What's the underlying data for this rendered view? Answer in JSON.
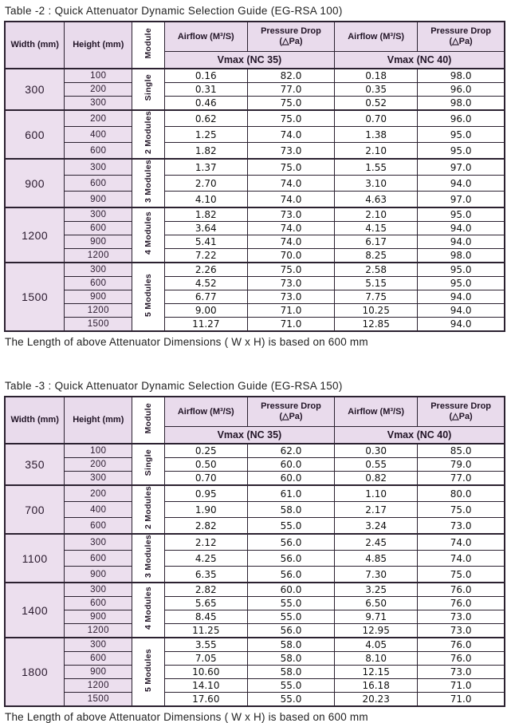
{
  "colors": {
    "header_bg": "#e9dbec",
    "label_bg": "#ecdfee",
    "border": "#2b2130",
    "text": "#1a1a1a"
  },
  "tables": [
    {
      "title": "Table -2 : Quick Attenuator Dynamic Selection Guide (EG-RSA 100)",
      "headers": {
        "width": "Width (mm)",
        "height": "Height (mm)",
        "module": "Module",
        "airflow": "Airflow (M³/S)",
        "pressure_drop": "Pressure Drop\n(△Pa)",
        "vmax_nc35": "Vmax (NC 35)",
        "vmax_nc40": "Vmax (NC 40)"
      },
      "groups": [
        {
          "width": "300",
          "module": "Single",
          "rows": [
            {
              "height": "100",
              "airflow_nc35": "0.16",
              "pressure_nc35": "82.0",
              "airflow_nc40": "0.18",
              "pressure_nc40": "98.0"
            },
            {
              "height": "200",
              "airflow_nc35": "0.31",
              "pressure_nc35": "77.0",
              "airflow_nc40": "0.35",
              "pressure_nc40": "96.0"
            },
            {
              "height": "300",
              "airflow_nc35": "0.46",
              "pressure_nc35": "75.0",
              "airflow_nc40": "0.52",
              "pressure_nc40": "98.0"
            }
          ]
        },
        {
          "width": "600",
          "module": "2 Modules",
          "rows": [
            {
              "height": "200",
              "airflow_nc35": "0.62",
              "pressure_nc35": "75.0",
              "airflow_nc40": "0.70",
              "pressure_nc40": "96.0"
            },
            {
              "height": "400",
              "airflow_nc35": "1.25",
              "pressure_nc35": "74.0",
              "airflow_nc40": "1.38",
              "pressure_nc40": "95.0"
            },
            {
              "height": "600",
              "airflow_nc35": "1.82",
              "pressure_nc35": "73.0",
              "airflow_nc40": "2.10",
              "pressure_nc40": "95.0"
            }
          ]
        },
        {
          "width": "900",
          "module": "3 Modules",
          "rows": [
            {
              "height": "300",
              "airflow_nc35": "1.37",
              "pressure_nc35": "75.0",
              "airflow_nc40": "1.55",
              "pressure_nc40": "97.0"
            },
            {
              "height": "600",
              "airflow_nc35": "2.70",
              "pressure_nc35": "74.0",
              "airflow_nc40": "3.10",
              "pressure_nc40": "94.0"
            },
            {
              "height": "900",
              "airflow_nc35": "4.10",
              "pressure_nc35": "74.0",
              "airflow_nc40": "4.63",
              "pressure_nc40": "97.0"
            }
          ]
        },
        {
          "width": "1200",
          "module": "4 Modules",
          "rows": [
            {
              "height": "300",
              "airflow_nc35": "1.82",
              "pressure_nc35": "73.0",
              "airflow_nc40": "2.10",
              "pressure_nc40": "95.0"
            },
            {
              "height": "600",
              "airflow_nc35": "3.64",
              "pressure_nc35": "74.0",
              "airflow_nc40": "4.15",
              "pressure_nc40": "94.0"
            },
            {
              "height": "900",
              "airflow_nc35": "5.41",
              "pressure_nc35": "74.0",
              "airflow_nc40": "6.17",
              "pressure_nc40": "94.0"
            },
            {
              "height": "1200",
              "airflow_nc35": "7.22",
              "pressure_nc35": "70.0",
              "airflow_nc40": "8.25",
              "pressure_nc40": "98.0"
            }
          ]
        },
        {
          "width": "1500",
          "module": "5 Modules",
          "rows": [
            {
              "height": "300",
              "airflow_nc35": "2.26",
              "pressure_nc35": "75.0",
              "airflow_nc40": "2.58",
              "pressure_nc40": "95.0"
            },
            {
              "height": "600",
              "airflow_nc35": "4.52",
              "pressure_nc35": "73.0",
              "airflow_nc40": "5.15",
              "pressure_nc40": "95.0"
            },
            {
              "height": "900",
              "airflow_nc35": "6.77",
              "pressure_nc35": "73.0",
              "airflow_nc40": "7.75",
              "pressure_nc40": "94.0"
            },
            {
              "height": "1200",
              "airflow_nc35": "9.00",
              "pressure_nc35": "71.0",
              "airflow_nc40": "10.25",
              "pressure_nc40": "94.0"
            },
            {
              "height": "1500",
              "airflow_nc35": "11.27",
              "pressure_nc35": "71.0",
              "airflow_nc40": "12.85",
              "pressure_nc40": "94.0"
            }
          ]
        }
      ],
      "footnote": "The Length of above Attenuator Dimensions ( W x H) is based on 600 mm"
    },
    {
      "title": "Table -3 : Quick Attenuator Dynamic Selection Guide (EG-RSA 150)",
      "headers": {
        "width": "Width (mm)",
        "height": "Height (mm)",
        "module": "Module",
        "airflow": "Airflow (M³/S)",
        "pressure_drop": "Pressure Drop\n(△Pa)",
        "vmax_nc35": "Vmax (NC 35)",
        "vmax_nc40": "Vmax (NC 40)"
      },
      "groups": [
        {
          "width": "350",
          "module": "Single",
          "rows": [
            {
              "height": "100",
              "airflow_nc35": "0.25",
              "pressure_nc35": "62.0",
              "airflow_nc40": "0.30",
              "pressure_nc40": "85.0"
            },
            {
              "height": "200",
              "airflow_nc35": "0.50",
              "pressure_nc35": "60.0",
              "airflow_nc40": "0.55",
              "pressure_nc40": "79.0"
            },
            {
              "height": "300",
              "airflow_nc35": "0.70",
              "pressure_nc35": "60.0",
              "airflow_nc40": "0.82",
              "pressure_nc40": "77.0"
            }
          ]
        },
        {
          "width": "700",
          "module": "2 Modules",
          "rows": [
            {
              "height": "200",
              "airflow_nc35": "0.95",
              "pressure_nc35": "61.0",
              "airflow_nc40": "1.10",
              "pressure_nc40": "80.0"
            },
            {
              "height": "400",
              "airflow_nc35": "1.90",
              "pressure_nc35": "58.0",
              "airflow_nc40": "2.17",
              "pressure_nc40": "75.0"
            },
            {
              "height": "600",
              "airflow_nc35": "2.82",
              "pressure_nc35": "55.0",
              "airflow_nc40": "3.24",
              "pressure_nc40": "73.0"
            }
          ]
        },
        {
          "width": "1100",
          "module": "3 Modules",
          "rows": [
            {
              "height": "300",
              "airflow_nc35": "2.12",
              "pressure_nc35": "56.0",
              "airflow_nc40": "2.45",
              "pressure_nc40": "74.0"
            },
            {
              "height": "600",
              "airflow_nc35": "4.25",
              "pressure_nc35": "56.0",
              "airflow_nc40": "4.85",
              "pressure_nc40": "74.0"
            },
            {
              "height": "900",
              "airflow_nc35": "6.35",
              "pressure_nc35": "56.0",
              "airflow_nc40": "7.30",
              "pressure_nc40": "75.0"
            }
          ]
        },
        {
          "width": "1400",
          "module": "4 Modules",
          "rows": [
            {
              "height": "300",
              "airflow_nc35": "2.82",
              "pressure_nc35": "60.0",
              "airflow_nc40": "3.25",
              "pressure_nc40": "76.0"
            },
            {
              "height": "600",
              "airflow_nc35": "5.65",
              "pressure_nc35": "55.0",
              "airflow_nc40": "6.50",
              "pressure_nc40": "76.0"
            },
            {
              "height": "900",
              "airflow_nc35": "8.45",
              "pressure_nc35": "55.0",
              "airflow_nc40": "9.71",
              "pressure_nc40": "73.0"
            },
            {
              "height": "1200",
              "airflow_nc35": "11.25",
              "pressure_nc35": "56.0",
              "airflow_nc40": "12.95",
              "pressure_nc40": "73.0"
            }
          ]
        },
        {
          "width": "1800",
          "module": "5 Modules",
          "rows": [
            {
              "height": "300",
              "airflow_nc35": "3.55",
              "pressure_nc35": "58.0",
              "airflow_nc40": "4.05",
              "pressure_nc40": "76.0"
            },
            {
              "height": "600",
              "airflow_nc35": "7.05",
              "pressure_nc35": "58.0",
              "airflow_nc40": "8.10",
              "pressure_nc40": "76.0"
            },
            {
              "height": "900",
              "airflow_nc35": "10.60",
              "pressure_nc35": "58.0",
              "airflow_nc40": "12.15",
              "pressure_nc40": "73.0"
            },
            {
              "height": "1200",
              "airflow_nc35": "14.10",
              "pressure_nc35": "55.0",
              "airflow_nc40": "16.18",
              "pressure_nc40": "71.0"
            },
            {
              "height": "1500",
              "airflow_nc35": "17.60",
              "pressure_nc35": "55.0",
              "airflow_nc40": "20.23",
              "pressure_nc40": "71.0"
            }
          ]
        }
      ],
      "footnote": "The Length of above Attenuator Dimensions ( W x H) is based on 600 mm"
    }
  ]
}
